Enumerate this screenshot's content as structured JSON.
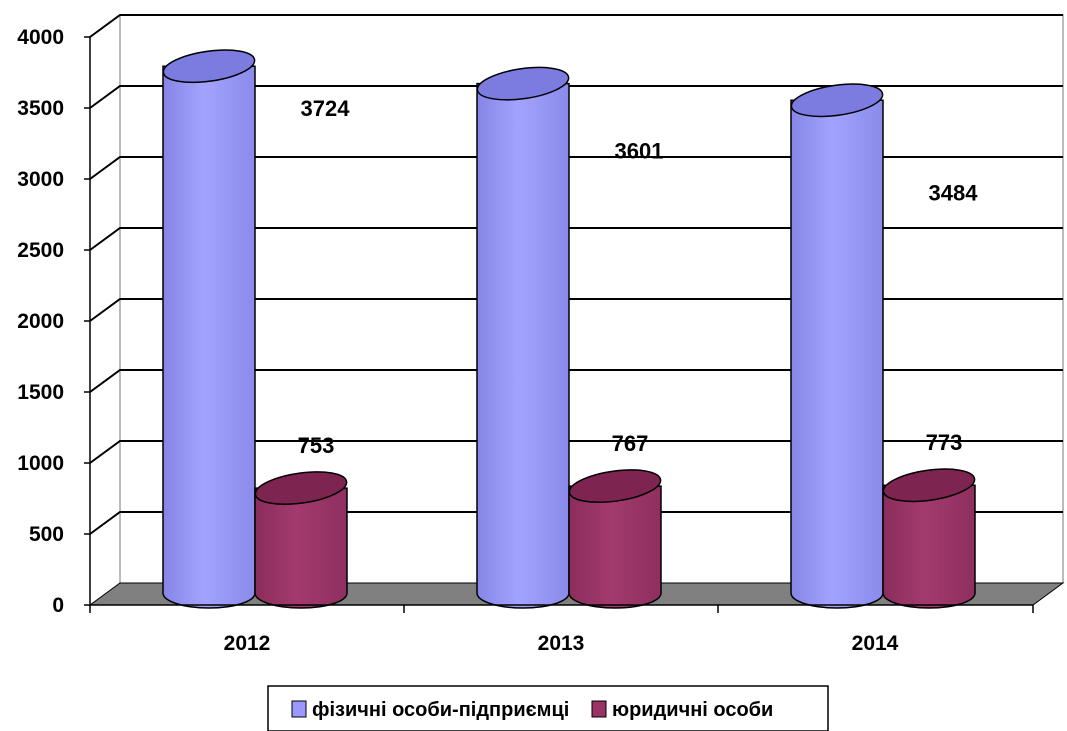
{
  "chart_data": {
    "type": "bar",
    "style": "3d-cylinder",
    "categories": [
      "2012",
      "2013",
      "2014"
    ],
    "series": [
      {
        "name": "фізичні особи-підприємці",
        "values": [
          3724,
          3601,
          3484
        ],
        "color": "#9999ff"
      },
      {
        "name": "юридичні особи",
        "values": [
          753,
          767,
          773
        ],
        "color": "#993366"
      }
    ],
    "data_labels": [
      [
        "3724",
        "3601",
        "3484"
      ],
      [
        "753",
        "767",
        "773"
      ]
    ],
    "ylim": [
      0,
      4000
    ],
    "yticks": [
      "0",
      "500",
      "1000",
      "1500",
      "2000",
      "2500",
      "3000",
      "3500",
      "4000"
    ],
    "grid": true,
    "legend_position": "bottom",
    "floor_color": "#808080"
  }
}
